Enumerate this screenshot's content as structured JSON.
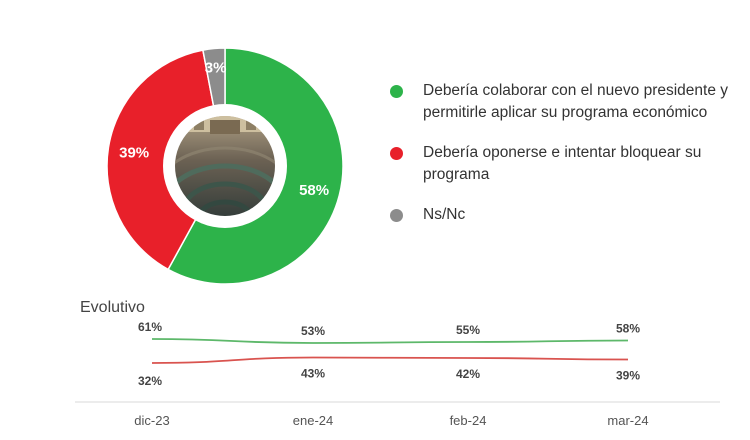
{
  "chart_data": [
    {
      "type": "pie",
      "style": "donut",
      "center_image": "photo of parliament chamber",
      "slices": [
        {
          "label": "Debería colaborar con el nuevo presidente y permitirle aplicar su programa económico",
          "value": 58,
          "value_label": "58%",
          "color": "#2DB34A"
        },
        {
          "label": "Debería oponerse e intentar bloquear su programa",
          "value": 39,
          "value_label": "39%",
          "color": "#E8202A"
        },
        {
          "label": "Ns/Nc",
          "value": 3,
          "value_label": "3%",
          "color": "#8C8C8C"
        }
      ],
      "legend_placement": "right"
    },
    {
      "type": "line",
      "title": "Evolutivo",
      "categories": [
        "dic-23",
        "ene-24",
        "feb-24",
        "mar-24"
      ],
      "series": [
        {
          "values": [
            61,
            53,
            55,
            58
          ],
          "labels": [
            "61%",
            "53%",
            "55%",
            "58%"
          ],
          "color": "#5DB86A"
        },
        {
          "values": [
            32,
            43,
            42,
            39
          ],
          "labels": [
            "32%",
            "43%",
            "42%",
            "39%"
          ],
          "color": "#D9534F"
        }
      ],
      "grid": false
    }
  ]
}
